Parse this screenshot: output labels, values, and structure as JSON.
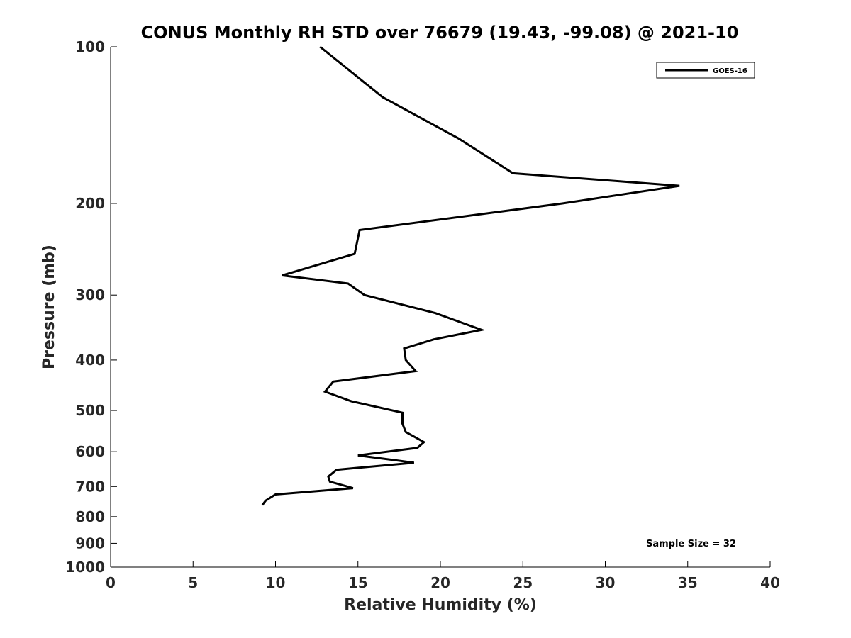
{
  "chart_data": {
    "type": "line",
    "title": "CONUS Monthly RH STD over 76679 (19.43, -99.08) @ 2021-10",
    "xlabel": "Relative Humidity (%)",
    "ylabel": "Pressure (mb)",
    "xlim": [
      0,
      40
    ],
    "ylim": [
      100,
      1000
    ],
    "y_scale": "log",
    "y_reversed": true,
    "x_ticks": [
      0,
      5,
      10,
      15,
      20,
      25,
      30,
      35,
      40
    ],
    "y_ticks": [
      100,
      200,
      300,
      400,
      500,
      600,
      700,
      800,
      900,
      1000
    ],
    "grid": false,
    "legend_position": "top-right",
    "series": [
      {
        "name": "GOES-16",
        "color": "#000000",
        "points": [
          {
            "x": 12.7,
            "y": 100
          },
          {
            "x": 16.5,
            "y": 125
          },
          {
            "x": 21.1,
            "y": 150
          },
          {
            "x": 24.4,
            "y": 175
          },
          {
            "x": 34.5,
            "y": 185
          },
          {
            "x": 27.4,
            "y": 200
          },
          {
            "x": 15.1,
            "y": 225
          },
          {
            "x": 14.8,
            "y": 250
          },
          {
            "x": 10.4,
            "y": 275
          },
          {
            "x": 14.4,
            "y": 285
          },
          {
            "x": 15.4,
            "y": 300
          },
          {
            "x": 19.7,
            "y": 325
          },
          {
            "x": 22.5,
            "y": 350
          },
          {
            "x": 19.6,
            "y": 365
          },
          {
            "x": 17.8,
            "y": 380
          },
          {
            "x": 17.9,
            "y": 400
          },
          {
            "x": 18.5,
            "y": 420
          },
          {
            "x": 13.5,
            "y": 440
          },
          {
            "x": 13.0,
            "y": 460
          },
          {
            "x": 14.6,
            "y": 480
          },
          {
            "x": 17.7,
            "y": 505
          },
          {
            "x": 17.7,
            "y": 530
          },
          {
            "x": 17.9,
            "y": 550
          },
          {
            "x": 19.0,
            "y": 575
          },
          {
            "x": 18.6,
            "y": 590
          },
          {
            "x": 15.0,
            "y": 610
          },
          {
            "x": 18.4,
            "y": 630
          },
          {
            "x": 13.7,
            "y": 650
          },
          {
            "x": 13.2,
            "y": 670
          },
          {
            "x": 13.3,
            "y": 685
          },
          {
            "x": 14.7,
            "y": 705
          },
          {
            "x": 10.0,
            "y": 725
          },
          {
            "x": 9.4,
            "y": 745
          },
          {
            "x": 9.2,
            "y": 760
          }
        ]
      }
    ],
    "annotation": "Sample Size = 32"
  }
}
